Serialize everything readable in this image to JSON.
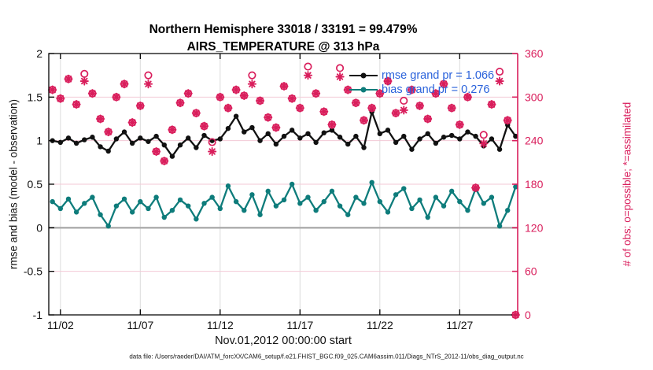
{
  "figure": {
    "title_line1": "Northern Hemisphere 33018 / 33191 = 99.479%",
    "title_line2": "AIRS_TEMPERATURE @ 313 hPa",
    "caption": "data file: /Users/raeder/DAI/ATM_forcXX/CAM6_setup/f.e21.FHIST_BGC.f09_025.CAM6assim.011/Diags_NTrS_2012-11/obs_diag_output.nc"
  },
  "legend": {
    "text_color": "#2A62DB",
    "entries": [
      {
        "label": "rmse grand pr = 1.066",
        "series": "rmse",
        "color": "#111111"
      },
      {
        "label": "bias grand pr = 0.276",
        "series": "bias",
        "color": "#0E7C7B"
      }
    ]
  },
  "chart_data": {
    "type": "line",
    "title": "Northern Hemisphere 33018 / 33191 = 99.479% — AIRS_TEMPERATURE @ 313 hPa",
    "x": {
      "label": "Nov.01,2012 00:00:00 start",
      "tick_days": [
        1,
        6,
        11,
        16,
        21,
        26
      ],
      "tick_labels": [
        "11/02",
        "11/07",
        "11/12",
        "11/17",
        "11/22",
        "11/27"
      ],
      "domain_days": [
        0.27,
        29.63
      ]
    },
    "y_left": {
      "label": "rmse and bias (model - observation)",
      "ticks": [
        2,
        1.5,
        1,
        0.5,
        0,
        -0.5,
        -1
      ],
      "range": [
        -1,
        2
      ],
      "color": "#111111"
    },
    "y_right": {
      "label": "# of obs: o=possible; *=assimilated",
      "ticks": [
        360,
        300,
        240,
        180,
        120,
        60,
        0
      ],
      "range": [
        0,
        360
      ],
      "color": "#D91E5C"
    },
    "grid": {
      "vertical_color": "#DCDCDC",
      "horizontal_color": "#F3C9D6",
      "zero_line_color": "#ABABAB"
    },
    "x_days": [
      0.5,
      1,
      1.5,
      2,
      2.5,
      3,
      3.5,
      4,
      4.5,
      5,
      5.5,
      6,
      6.5,
      7,
      7.5,
      8,
      8.5,
      9,
      9.5,
      10,
      10.5,
      11,
      11.5,
      12,
      12.5,
      13,
      13.5,
      14,
      14.5,
      15,
      15.5,
      16,
      16.5,
      17,
      17.5,
      18,
      18.5,
      19,
      19.5,
      20,
      20.5,
      21,
      21.5,
      22,
      22.5,
      23,
      23.5,
      24,
      24.5,
      25,
      25.5,
      26,
      26.5,
      27,
      27.5,
      28,
      28.5,
      29,
      29.5
    ],
    "series": [
      {
        "name": "rmse",
        "axis": "left",
        "color": "#111111",
        "marker": "dot",
        "values": [
          1.0,
          0.98,
          1.03,
          0.97,
          1.01,
          1.04,
          0.93,
          0.88,
          1.02,
          1.1,
          0.97,
          1.03,
          0.99,
          1.05,
          0.95,
          0.82,
          0.95,
          1.03,
          0.92,
          1.06,
          1.0,
          1.02,
          1.14,
          1.28,
          1.1,
          1.15,
          1.0,
          1.08,
          0.96,
          1.05,
          1.12,
          1.03,
          1.08,
          0.98,
          1.09,
          1.12,
          1.04,
          0.96,
          1.05,
          0.92,
          1.33,
          1.08,
          1.12,
          0.98,
          1.05,
          0.9,
          1.02,
          1.08,
          0.97,
          1.04,
          1.06,
          1.02,
          1.1,
          1.05,
          0.94,
          1.02,
          0.9,
          1.18,
          1.05
        ]
      },
      {
        "name": "bias",
        "axis": "left",
        "color": "#0E7C7B",
        "marker": "dot",
        "values": [
          0.3,
          0.22,
          0.33,
          0.18,
          0.28,
          0.35,
          0.15,
          0.02,
          0.25,
          0.33,
          0.18,
          0.3,
          0.22,
          0.35,
          0.12,
          0.2,
          0.32,
          0.25,
          0.1,
          0.28,
          0.35,
          0.22,
          0.48,
          0.3,
          0.2,
          0.38,
          0.15,
          0.42,
          0.25,
          0.32,
          0.5,
          0.28,
          0.35,
          0.2,
          0.3,
          0.42,
          0.25,
          0.15,
          0.35,
          0.28,
          0.52,
          0.3,
          0.18,
          0.38,
          0.45,
          0.22,
          0.32,
          0.12,
          0.35,
          0.25,
          0.42,
          0.3,
          0.2,
          0.45,
          0.28,
          0.35,
          0.02,
          0.2,
          0.47
        ]
      },
      {
        "name": "possible",
        "axis": "right",
        "color": "#D91E5C",
        "marker": "circle",
        "values": [
          310,
          298,
          325,
          290,
          332,
          305,
          270,
          252,
          300,
          318,
          265,
          288,
          330,
          225,
          212,
          255,
          292,
          305,
          278,
          260,
          238,
          300,
          285,
          310,
          302,
          330,
          295,
          272,
          258,
          315,
          298,
          285,
          342,
          305,
          280,
          262,
          340,
          310,
          292,
          268,
          285,
          305,
          322,
          278,
          295,
          310,
          288,
          270,
          305,
          318,
          285,
          262,
          300,
          175,
          248,
          290,
          335,
          268,
          0
        ]
      },
      {
        "name": "assimilated",
        "axis": "right",
        "color": "#D91E5C",
        "marker": "asterisk",
        "values": [
          310,
          298,
          325,
          290,
          322,
          305,
          270,
          252,
          300,
          318,
          265,
          288,
          318,
          225,
          212,
          255,
          292,
          305,
          278,
          260,
          225,
          300,
          285,
          310,
          302,
          318,
          295,
          272,
          258,
          315,
          298,
          285,
          330,
          305,
          280,
          262,
          328,
          310,
          292,
          268,
          285,
          305,
          322,
          278,
          282,
          310,
          288,
          270,
          305,
          318,
          285,
          262,
          300,
          175,
          236,
          290,
          322,
          268,
          0
        ]
      }
    ]
  }
}
